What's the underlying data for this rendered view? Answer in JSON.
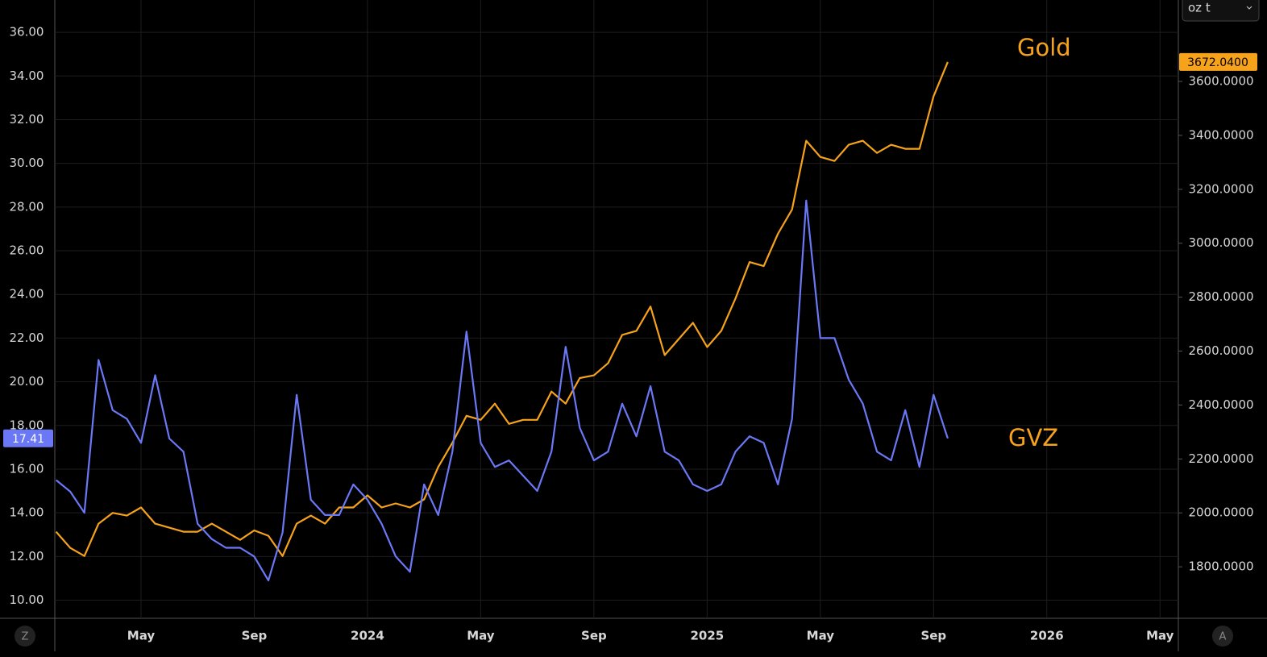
{
  "chart_data": {
    "type": "line",
    "grid": true,
    "categories": [
      null,
      null,
      null,
      null,
      null,
      null,
      "May",
      null,
      null,
      null,
      null,
      null,
      null,
      null,
      "Sep",
      null,
      null,
      null,
      null,
      null,
      null,
      null,
      "2024",
      null,
      null,
      null,
      null,
      null,
      null,
      null,
      "May",
      null,
      null,
      null,
      null,
      null,
      null,
      null,
      "Sep",
      null,
      null,
      null,
      null,
      null,
      null,
      null,
      "2025",
      null,
      null,
      null,
      null,
      null,
      null,
      null,
      "May",
      null,
      null,
      null,
      null,
      null,
      null,
      null,
      "Sep",
      null,
      null,
      null,
      null,
      null,
      null,
      null,
      "2026",
      null,
      null,
      null,
      null,
      null,
      null,
      null,
      "May",
      null
    ],
    "ylim": [
      9.17,
      37.48
    ],
    "yticks": [
      {
        "value": 10,
        "label": "10.00"
      },
      {
        "value": 12,
        "label": "12.00"
      },
      {
        "value": 14,
        "label": "14.00"
      },
      {
        "value": 16,
        "label": "16.00"
      },
      {
        "value": 18,
        "label": "18.00"
      },
      {
        "value": 20,
        "label": "20.00"
      },
      {
        "value": 22,
        "label": "22.00"
      },
      {
        "value": 24,
        "label": "24.00"
      },
      {
        "value": 26,
        "label": "26.00"
      },
      {
        "value": 28,
        "label": "28.00"
      },
      {
        "value": 30,
        "label": "30.00"
      },
      {
        "value": 32,
        "label": "32.00"
      },
      {
        "value": 34,
        "label": "34.00"
      },
      {
        "value": 36,
        "label": "36.00"
      }
    ],
    "y2lim": [
      1609,
      3902
    ],
    "y2ticks": [
      {
        "value": 1800,
        "label": "1800.0000"
      },
      {
        "value": 2000,
        "label": "2000.0000"
      },
      {
        "value": 2200,
        "label": "2200.0000"
      },
      {
        "value": 2400,
        "label": "2400.0000"
      },
      {
        "value": 2600,
        "label": "2600.0000"
      },
      {
        "value": 2800,
        "label": "2800.0000"
      },
      {
        "value": 3000,
        "label": "3000.0000"
      },
      {
        "value": 3200,
        "label": "3200.0000"
      },
      {
        "value": 3400,
        "label": "3400.0000"
      },
      {
        "value": 3600,
        "label": "3600.0000"
      }
    ],
    "annotations": [
      "Gold",
      "GVZ"
    ],
    "series": [
      {
        "name": "GVZ",
        "color": "#6b78f5",
        "axis": "y",
        "last_label": "17.41",
        "values": [
          15.5,
          14.97,
          14.0,
          21.0,
          18.7,
          18.3,
          17.2,
          20.3,
          17.4,
          16.8,
          13.5,
          12.8,
          12.4,
          12.4,
          12.0,
          10.9,
          13.1,
          19.4,
          14.6,
          13.9,
          13.9,
          15.3,
          14.6,
          13.5,
          12.0,
          11.3,
          15.3,
          13.9,
          16.8,
          22.3,
          17.2,
          16.1,
          16.4,
          15.7,
          15.0,
          16.8,
          21.6,
          17.9,
          16.4,
          16.8,
          19.0,
          17.5,
          19.8,
          16.8,
          16.4,
          15.3,
          15.0,
          15.3,
          16.8,
          17.5,
          17.2,
          15.3,
          18.3,
          28.3,
          22.0,
          22.0,
          20.1,
          19.0,
          16.8,
          16.4,
          18.7,
          16.1,
          19.4,
          17.41,
          null,
          null,
          null,
          null,
          null,
          null,
          null,
          null,
          null,
          null,
          null,
          null,
          null,
          null,
          null,
          null
        ]
      },
      {
        "name": "Gold",
        "color": "#f7a21b",
        "axis": "y2",
        "last_label": "3672.0400",
        "values": [
          1930,
          1870,
          1840,
          1960,
          2000,
          1990,
          2020,
          1960,
          1945,
          1930,
          1930,
          1960,
          1930,
          1900,
          1935,
          1915,
          1840,
          1960,
          1990,
          1960,
          2020,
          2020,
          2065,
          2020,
          2035,
          2020,
          2050,
          2170,
          2260,
          2360,
          2345,
          2405,
          2330,
          2345,
          2345,
          2450,
          2405,
          2500,
          2510,
          2555,
          2660,
          2675,
          2765,
          2585,
          2645,
          2705,
          2615,
          2675,
          2795,
          2930,
          2915,
          3035,
          3125,
          3380,
          3320,
          3305,
          3365,
          3380,
          3335,
          3365,
          3350,
          3350,
          3545,
          3672.04,
          null,
          null,
          null,
          null,
          null,
          null,
          null,
          null,
          null,
          null,
          null,
          null,
          null,
          null,
          null,
          null
        ]
      }
    ]
  },
  "ui": {
    "unit": "oz t",
    "left_button": "Z",
    "right_button": "A"
  }
}
